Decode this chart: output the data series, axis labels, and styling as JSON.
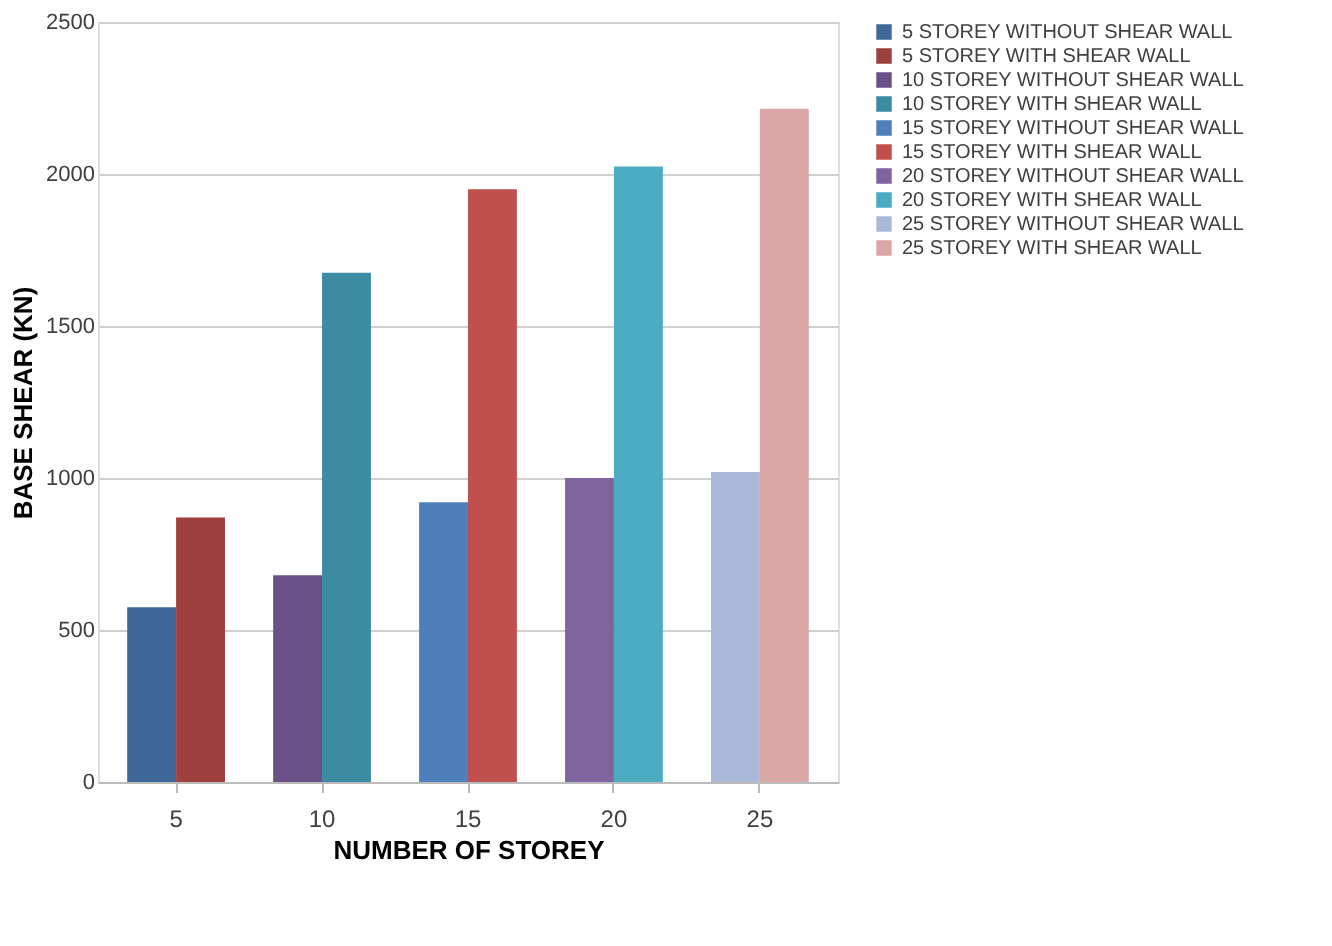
{
  "chart_data": {
    "type": "bar",
    "xlabel": "NUMBER OF STOREY",
    "ylabel": "BASE SHEAR (KN)",
    "categories": [
      "5",
      "10",
      "15",
      "20",
      "25"
    ],
    "series": [
      {
        "name": "5 STOREY WITHOUT SHEAR WALL",
        "color": "#3f6898",
        "values": [
          575,
          null,
          null,
          null,
          null
        ]
      },
      {
        "name": "5 STOREY WITH SHEAR WALL",
        "color": "#9e413e",
        "values": [
          870,
          null,
          null,
          null,
          null
        ]
      },
      {
        "name": "10 STOREY WITHOUT SHEAR WALL",
        "color": "#6a5187",
        "values": [
          null,
          680,
          null,
          null,
          null
        ]
      },
      {
        "name": "10 STOREY WITH SHEAR WALL",
        "color": "#3b8ca3",
        "values": [
          null,
          1675,
          null,
          null,
          null
        ]
      },
      {
        "name": "15 STOREY WITHOUT SHEAR WALL",
        "color": "#4f80bb",
        "values": [
          null,
          null,
          920,
          null,
          null
        ]
      },
      {
        "name": "15 STOREY WITH SHEAR WALL",
        "color": "#c0504d",
        "values": [
          null,
          null,
          1950,
          null,
          null
        ]
      },
      {
        "name": "20 STOREY WITHOUT SHEAR WALL",
        "color": "#8064a0",
        "values": [
          null,
          null,
          null,
          1000,
          null
        ]
      },
      {
        "name": "20 STOREY WITH SHEAR WALL",
        "color": "#4bacc4",
        "values": [
          null,
          null,
          null,
          2025,
          null
        ]
      },
      {
        "name": "25 STOREY WITHOUT SHEAR WALL",
        "color": "#aab9d7",
        "values": [
          null,
          null,
          null,
          null,
          1020
        ]
      },
      {
        "name": "25 STOREY WITH SHEAR WALL",
        "color": "#daa7a6",
        "values": [
          null,
          null,
          null,
          null,
          2215
        ]
      }
    ],
    "ylim": [
      0,
      2500
    ],
    "yticks": [
      0,
      500,
      1000,
      1500,
      2000,
      2500
    ],
    "grid": "y",
    "legend": "right"
  }
}
